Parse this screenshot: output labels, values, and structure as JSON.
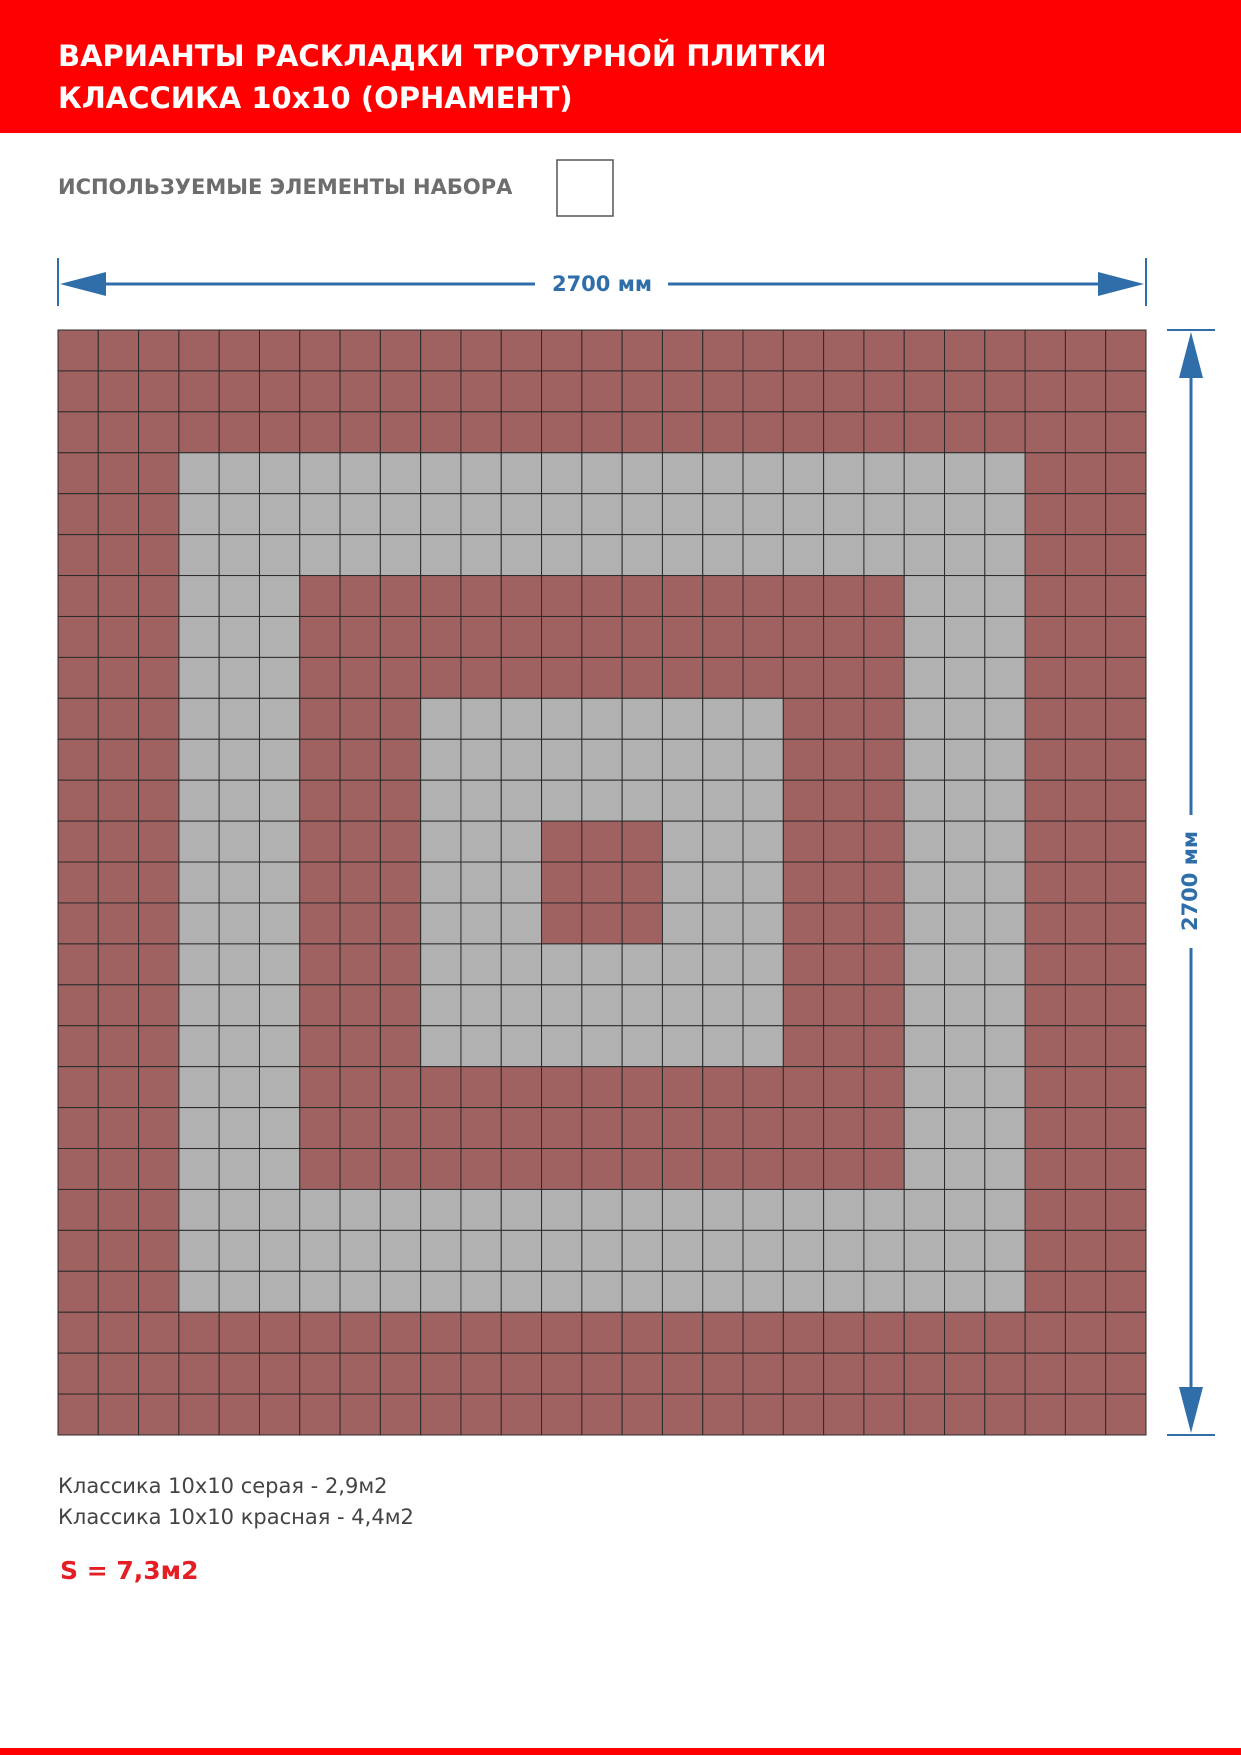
{
  "header": {
    "title_line1": "ВАРИАНТЫ РАСКЛАДКИ ТРОТУРНОЙ ПЛИТКИ",
    "title_line2": "КЛАССИКА 10x10 (ОРНАМЕНТ)"
  },
  "elements_label": "ИСПОЛЬЗУЕМЫЕ ЭЛЕМЕНТЫ НАБОРА",
  "dimensions": {
    "width": "2700 мм",
    "height": "2700 мм"
  },
  "notes": [
    "Классика 10x10 серая - 2,9м2",
    "Классика 10x10 красная - 4,4м2"
  ],
  "total": "S = 7,3м2"
}
